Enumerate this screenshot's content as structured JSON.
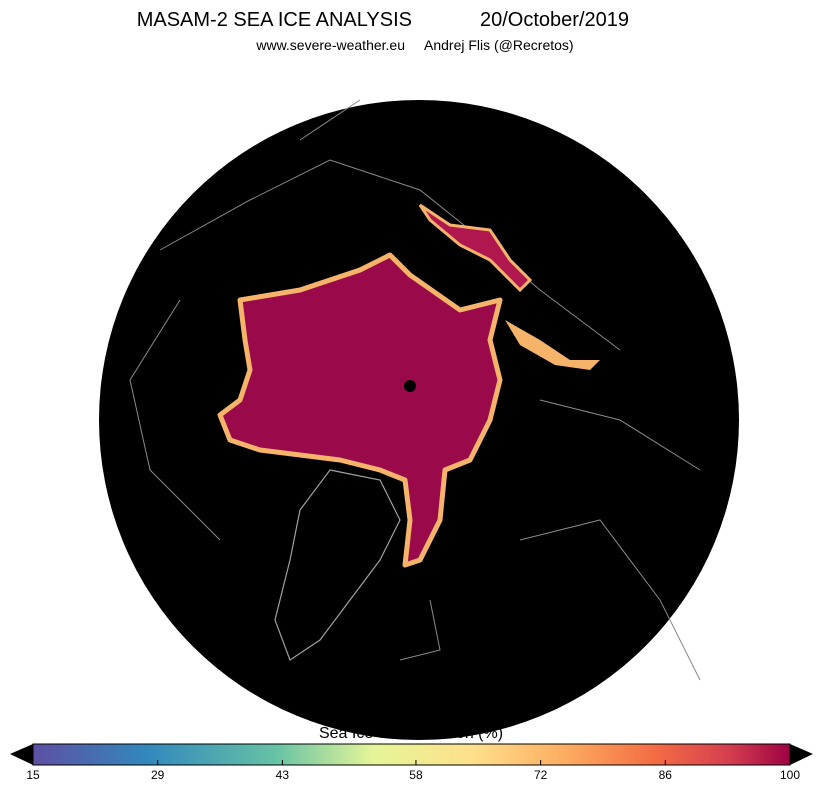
{
  "header": {
    "title": "MASAM-2 SEA ICE ANALYSIS",
    "date": "20/October/2019",
    "site": "www.severe-weather.eu",
    "author": "Andrej Flis (@Recretos)"
  },
  "colorbar": {
    "label": "Sea Ice concentration (%)",
    "range": [
      15,
      100
    ],
    "ticks": [
      15,
      29,
      43,
      58,
      72,
      86,
      100
    ]
  }
}
